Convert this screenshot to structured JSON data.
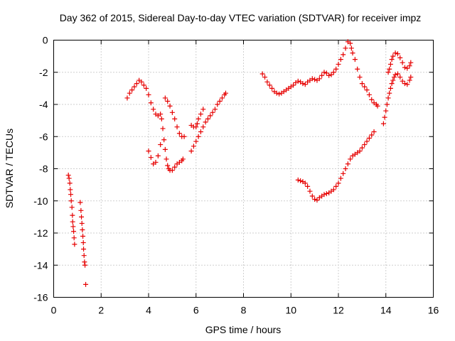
{
  "chart_data": {
    "type": "scatter",
    "title": "Day 362 of 2015, Sidereal Day-to-day VTEC variation (SDTVAR) for receiver impz",
    "xlabel": "GPS time / hours",
    "ylabel": "SDTVAR / TECUs",
    "xlim": [
      0,
      16
    ],
    "ylim": [
      -16,
      0
    ],
    "xticks": [
      0,
      2,
      4,
      6,
      8,
      10,
      12,
      14,
      16
    ],
    "yticks": [
      0,
      -2,
      -4,
      -6,
      -8,
      -10,
      -12,
      -14,
      -16
    ],
    "xtick_labels": [
      "0",
      "2",
      "4",
      "6",
      "8",
      "10",
      "12",
      "14",
      "16"
    ],
    "ytick_labels": [
      "0",
      "-2",
      "-4",
      "-6",
      "-8",
      "-10",
      "-12",
      "-14",
      "-16"
    ],
    "grid": true,
    "legend": "none",
    "marker": "+",
    "color": "#e60000",
    "series": [
      {
        "points": [
          [
            0.62,
            -8.4
          ],
          [
            0.65,
            -8.6
          ],
          [
            0.68,
            -8.9
          ],
          [
            0.7,
            -9.3
          ],
          [
            0.72,
            -9.6
          ],
          [
            0.74,
            -10.0
          ],
          [
            0.77,
            -10.4
          ],
          [
            0.79,
            -10.9
          ],
          [
            0.8,
            -11.3
          ],
          [
            0.82,
            -11.6
          ],
          [
            0.84,
            -11.9
          ],
          [
            0.86,
            -12.3
          ],
          [
            0.88,
            -12.7
          ]
        ]
      },
      {
        "points": [
          [
            1.12,
            -10.1
          ],
          [
            1.15,
            -10.6
          ],
          [
            1.17,
            -11.0
          ],
          [
            1.19,
            -11.4
          ],
          [
            1.21,
            -11.8
          ],
          [
            1.23,
            -12.2
          ],
          [
            1.25,
            -12.6
          ],
          [
            1.26,
            -13.0
          ],
          [
            1.28,
            -13.4
          ],
          [
            1.3,
            -13.8
          ],
          [
            1.32,
            -14.0
          ],
          [
            1.35,
            -15.2
          ]
        ]
      },
      {
        "points": [
          [
            3.1,
            -3.6
          ],
          [
            3.2,
            -3.3
          ],
          [
            3.3,
            -3.1
          ],
          [
            3.4,
            -2.9
          ],
          [
            3.5,
            -2.7
          ],
          [
            3.6,
            -2.5
          ],
          [
            3.7,
            -2.6
          ],
          [
            3.8,
            -2.8
          ],
          [
            3.9,
            -3.0
          ],
          [
            4.0,
            -3.4
          ],
          [
            4.1,
            -3.9
          ],
          [
            4.2,
            -4.3
          ],
          [
            4.3,
            -4.6
          ],
          [
            4.4,
            -4.7
          ],
          [
            4.5,
            -4.6
          ],
          [
            4.55,
            -4.9
          ],
          [
            4.6,
            -5.5
          ],
          [
            4.65,
            -6.2
          ],
          [
            4.7,
            -6.8
          ],
          [
            4.75,
            -7.4
          ],
          [
            4.8,
            -7.8
          ],
          [
            4.85,
            -8.0
          ],
          [
            4.9,
            -8.1
          ],
          [
            5.0,
            -8.1
          ],
          [
            5.1,
            -7.9
          ],
          [
            5.2,
            -7.7
          ],
          [
            5.3,
            -7.6
          ],
          [
            5.4,
            -7.5
          ],
          [
            5.45,
            -7.4
          ]
        ]
      },
      {
        "points": [
          [
            4.0,
            -6.9
          ],
          [
            4.1,
            -7.3
          ],
          [
            4.2,
            -7.7
          ],
          [
            4.3,
            -7.6
          ],
          [
            4.4,
            -7.2
          ],
          [
            4.5,
            -6.5
          ]
        ]
      },
      {
        "points": [
          [
            4.7,
            -3.6
          ],
          [
            4.8,
            -3.8
          ],
          [
            4.9,
            -4.1
          ],
          [
            5.0,
            -4.5
          ],
          [
            5.1,
            -4.9
          ],
          [
            5.2,
            -5.4
          ],
          [
            5.3,
            -5.8
          ],
          [
            5.4,
            -6.0
          ],
          [
            5.5,
            -6.0
          ]
        ]
      },
      {
        "points": [
          [
            5.8,
            -5.3
          ],
          [
            5.9,
            -5.4
          ],
          [
            6.0,
            -5.4
          ],
          [
            6.05,
            -5.2
          ],
          [
            6.1,
            -4.9
          ],
          [
            6.2,
            -4.6
          ],
          [
            6.3,
            -4.3
          ]
        ]
      },
      {
        "points": [
          [
            5.8,
            -6.9
          ],
          [
            5.9,
            -6.6
          ],
          [
            6.0,
            -6.3
          ],
          [
            6.1,
            -6.0
          ],
          [
            6.2,
            -5.7
          ],
          [
            6.3,
            -5.4
          ],
          [
            6.4,
            -5.1
          ],
          [
            6.5,
            -4.9
          ],
          [
            6.6,
            -4.7
          ],
          [
            6.7,
            -4.5
          ],
          [
            6.8,
            -4.3
          ],
          [
            6.9,
            -4.0
          ],
          [
            7.0,
            -3.8
          ],
          [
            7.1,
            -3.6
          ],
          [
            7.2,
            -3.4
          ],
          [
            7.25,
            -3.3
          ]
        ]
      },
      {
        "points": [
          [
            8.8,
            -2.1
          ],
          [
            8.9,
            -2.3
          ],
          [
            9.0,
            -2.6
          ],
          [
            9.1,
            -2.8
          ],
          [
            9.2,
            -3.0
          ],
          [
            9.3,
            -3.2
          ],
          [
            9.4,
            -3.3
          ],
          [
            9.5,
            -3.35
          ],
          [
            9.6,
            -3.3
          ],
          [
            9.7,
            -3.2
          ],
          [
            9.8,
            -3.1
          ],
          [
            9.9,
            -3.0
          ],
          [
            10.0,
            -2.9
          ],
          [
            10.1,
            -2.8
          ],
          [
            10.2,
            -2.65
          ],
          [
            10.3,
            -2.55
          ],
          [
            10.4,
            -2.6
          ],
          [
            10.5,
            -2.7
          ],
          [
            10.6,
            -2.75
          ],
          [
            10.7,
            -2.6
          ],
          [
            10.8,
            -2.5
          ],
          [
            10.9,
            -2.4
          ],
          [
            11.0,
            -2.45
          ],
          [
            11.1,
            -2.5
          ],
          [
            11.2,
            -2.4
          ],
          [
            11.3,
            -2.2
          ],
          [
            11.4,
            -2.0
          ],
          [
            11.5,
            -2.05
          ],
          [
            11.6,
            -2.2
          ],
          [
            11.7,
            -2.15
          ],
          [
            11.8,
            -2.0
          ],
          [
            11.9,
            -1.8
          ],
          [
            12.0,
            -1.5
          ],
          [
            12.1,
            -1.2
          ],
          [
            12.2,
            -0.9
          ],
          [
            12.3,
            -0.5
          ],
          [
            12.4,
            -0.1
          ],
          [
            12.5,
            -0.2
          ],
          [
            12.55,
            -0.5
          ],
          [
            12.6,
            -0.8
          ],
          [
            12.7,
            -1.2
          ],
          [
            12.8,
            -1.8
          ],
          [
            12.9,
            -2.3
          ],
          [
            13.0,
            -2.7
          ],
          [
            13.1,
            -2.9
          ],
          [
            13.2,
            -3.1
          ],
          [
            13.3,
            -3.4
          ],
          [
            13.4,
            -3.7
          ],
          [
            13.5,
            -3.9
          ],
          [
            13.6,
            -4.0
          ],
          [
            13.65,
            -4.1
          ]
        ]
      },
      {
        "points": [
          [
            10.3,
            -8.7
          ],
          [
            10.4,
            -8.75
          ],
          [
            10.5,
            -8.8
          ],
          [
            10.6,
            -8.9
          ],
          [
            10.7,
            -9.1
          ],
          [
            10.8,
            -9.4
          ],
          [
            10.9,
            -9.7
          ],
          [
            11.0,
            -9.9
          ],
          [
            11.1,
            -9.95
          ],
          [
            11.2,
            -9.8
          ],
          [
            11.3,
            -9.7
          ],
          [
            11.4,
            -9.6
          ],
          [
            11.5,
            -9.55
          ],
          [
            11.6,
            -9.5
          ],
          [
            11.7,
            -9.4
          ],
          [
            11.8,
            -9.3
          ],
          [
            11.9,
            -9.1
          ],
          [
            12.0,
            -8.9
          ],
          [
            12.1,
            -8.6
          ],
          [
            12.2,
            -8.3
          ],
          [
            12.3,
            -8.0
          ],
          [
            12.4,
            -7.7
          ],
          [
            12.5,
            -7.4
          ],
          [
            12.6,
            -7.2
          ],
          [
            12.7,
            -7.1
          ],
          [
            12.8,
            -7.0
          ],
          [
            12.9,
            -6.9
          ],
          [
            13.0,
            -6.7
          ],
          [
            13.1,
            -6.5
          ],
          [
            13.2,
            -6.3
          ],
          [
            13.3,
            -6.1
          ],
          [
            13.4,
            -5.9
          ],
          [
            13.5,
            -5.7
          ]
        ]
      },
      {
        "points": [
          [
            13.9,
            -5.2
          ],
          [
            13.95,
            -4.8
          ],
          [
            14.0,
            -4.4
          ],
          [
            14.05,
            -4.0
          ],
          [
            14.1,
            -3.6
          ],
          [
            14.15,
            -3.3
          ],
          [
            14.2,
            -3.0
          ],
          [
            14.25,
            -2.7
          ],
          [
            14.3,
            -2.5
          ],
          [
            14.35,
            -2.3
          ],
          [
            14.4,
            -2.15
          ],
          [
            14.5,
            -2.1
          ],
          [
            14.6,
            -2.3
          ],
          [
            14.7,
            -2.55
          ],
          [
            14.8,
            -2.7
          ],
          [
            14.9,
            -2.75
          ],
          [
            15.0,
            -2.5
          ],
          [
            15.05,
            -2.3
          ]
        ]
      },
      {
        "points": [
          [
            14.1,
            -2.0
          ],
          [
            14.15,
            -1.8
          ],
          [
            14.2,
            -1.5
          ],
          [
            14.25,
            -1.2
          ],
          [
            14.3,
            -1.0
          ],
          [
            14.4,
            -0.8
          ],
          [
            14.5,
            -0.85
          ],
          [
            14.6,
            -1.1
          ],
          [
            14.7,
            -1.4
          ],
          [
            14.8,
            -1.7
          ],
          [
            14.9,
            -1.75
          ],
          [
            15.0,
            -1.6
          ],
          [
            15.05,
            -1.4
          ]
        ]
      }
    ]
  }
}
